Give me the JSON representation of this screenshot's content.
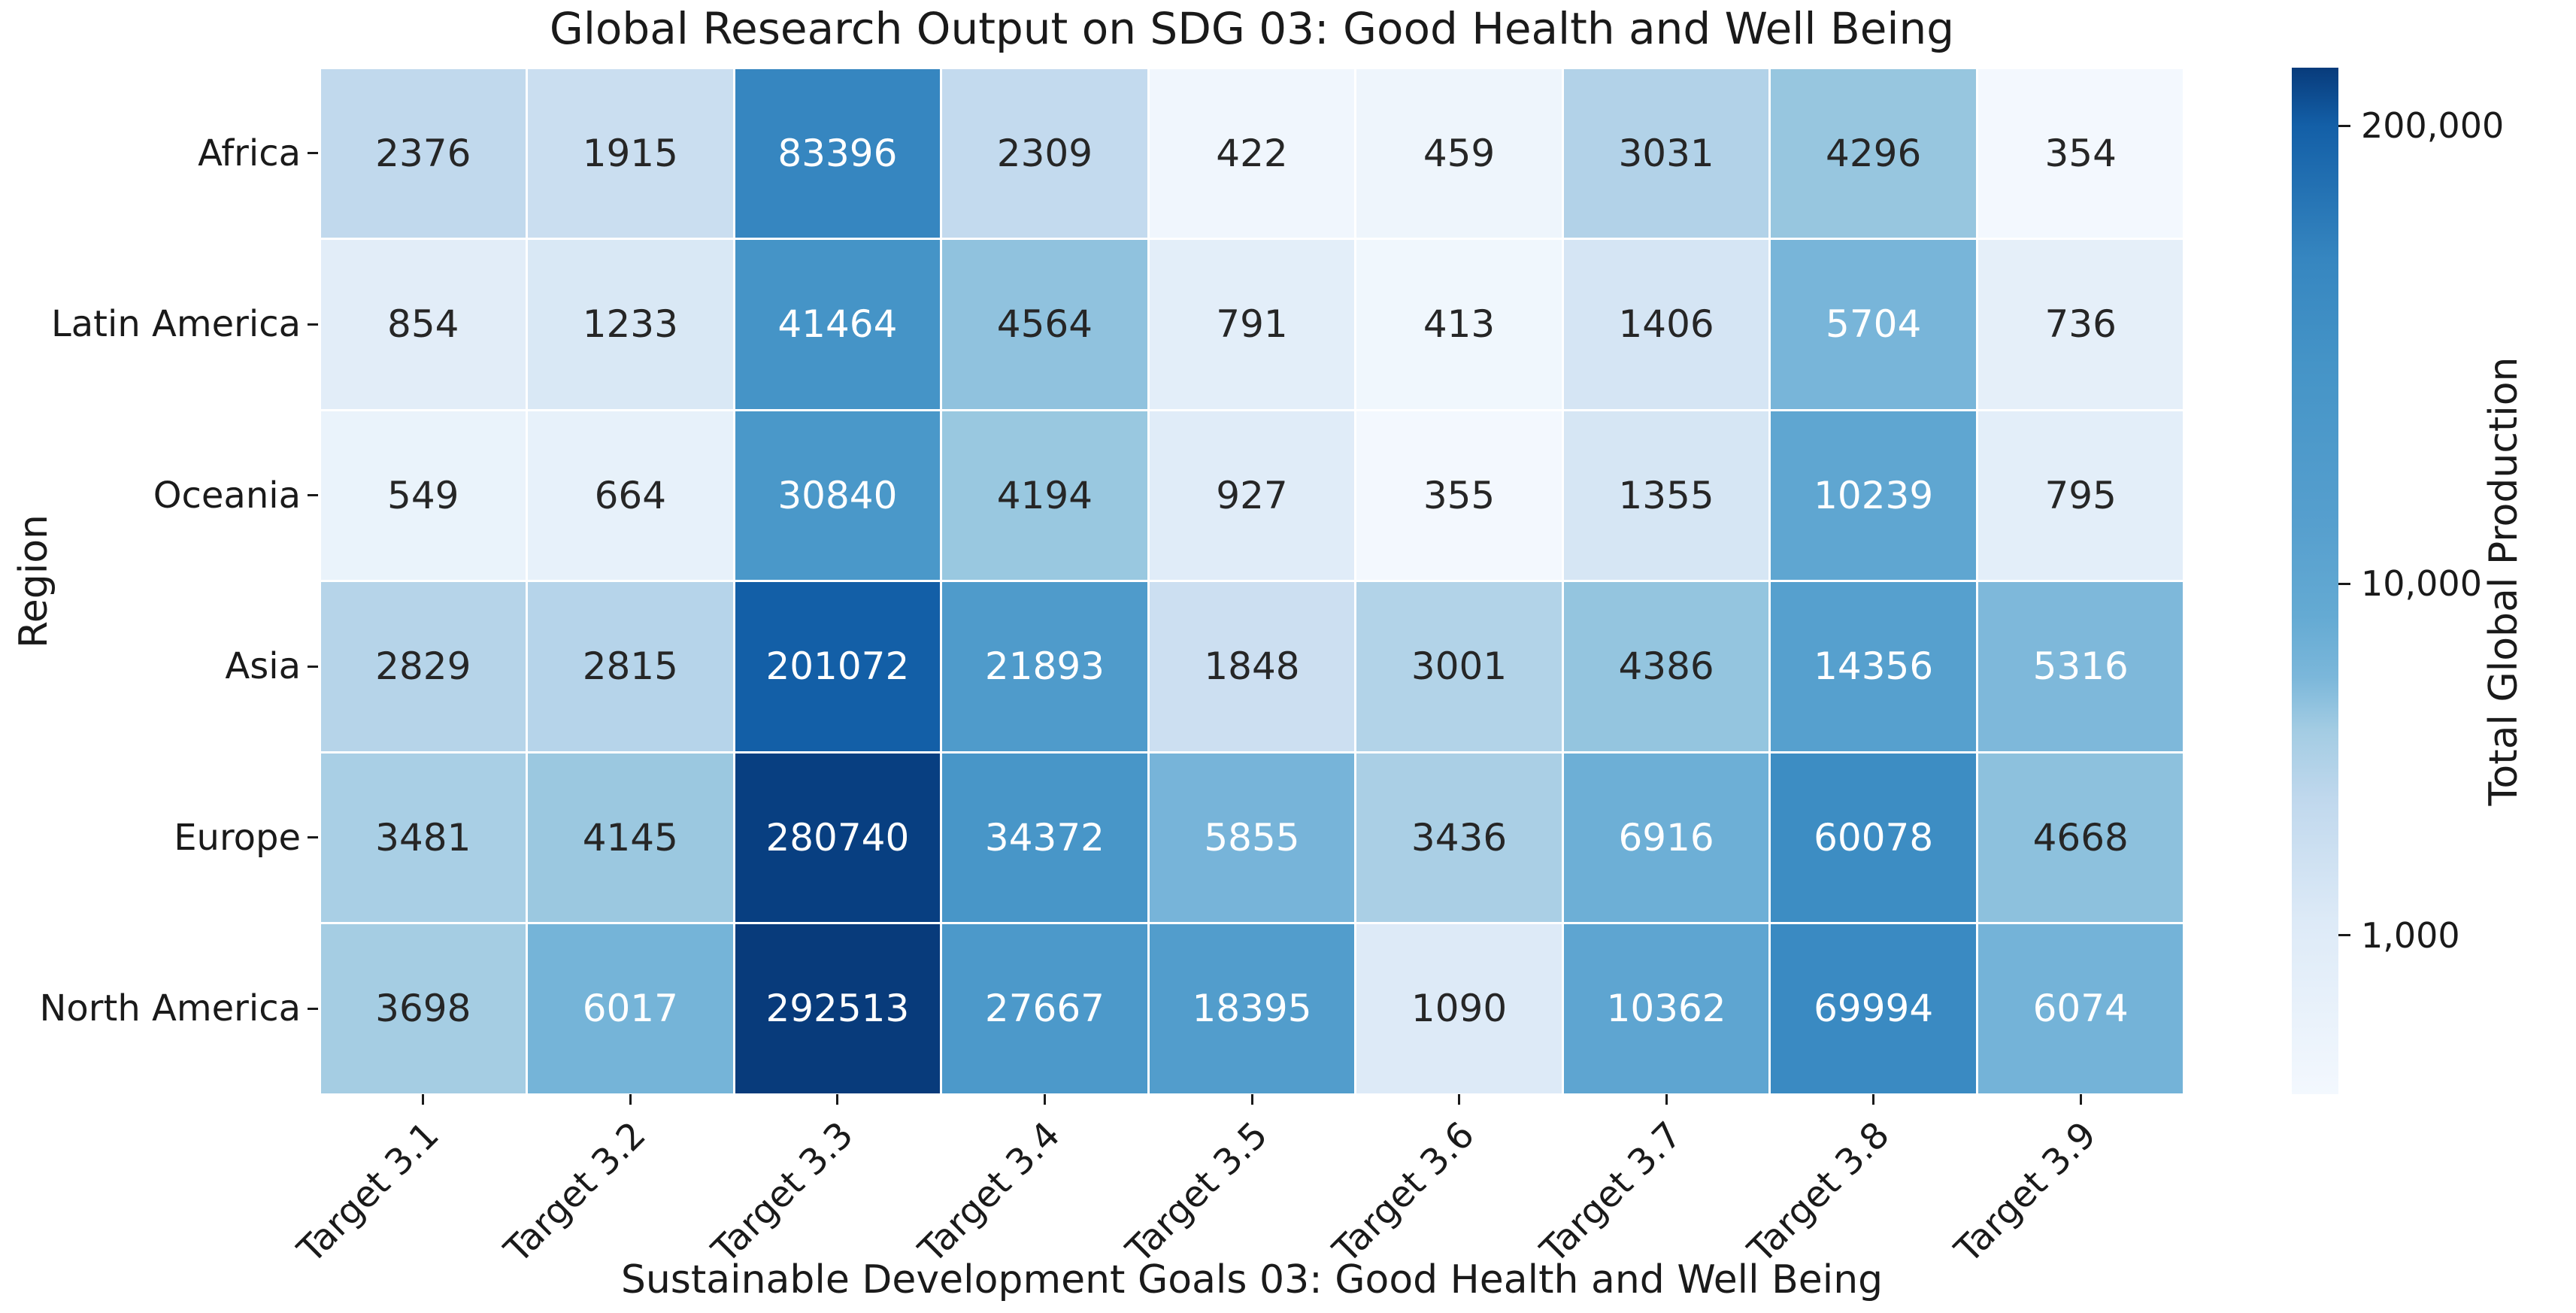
{
  "figure": {
    "title": "Global Research Output on SDG 03: Good Health and Well Being"
  },
  "axes": {
    "x_label": "Sustainable Development Goals 03: Good Health and Well Being",
    "y_label": "Region"
  },
  "colorbar": {
    "label": "Total Global Production",
    "ticks": [
      {
        "value": 200000,
        "label": "200,000"
      },
      {
        "value": 10000,
        "label": "10,000"
      },
      {
        "value": 1000,
        "label": "1,000"
      }
    ]
  },
  "chart_data": {
    "type": "heatmap",
    "title": "Global Research Output on SDG 03: Good Health and Well Being",
    "xlabel": "Sustainable Development Goals 03: Good Health and Well Being",
    "ylabel": "Region",
    "x_categories": [
      "Target 3.1",
      "Target 3.2",
      "Target 3.3",
      "Target 3.4",
      "Target 3.5",
      "Target 3.6",
      "Target 3.7",
      "Target 3.8",
      "Target 3.9"
    ],
    "y_categories": [
      "Africa",
      "Latin America",
      "Oceania",
      "Asia",
      "Europe",
      "North America"
    ],
    "values": [
      [
        2376,
        1915,
        83396,
        2309,
        422,
        459,
        3031,
        4296,
        354
      ],
      [
        854,
        1233,
        41464,
        4564,
        791,
        413,
        1406,
        5704,
        736
      ],
      [
        549,
        664,
        30840,
        4194,
        927,
        355,
        1355,
        10239,
        795
      ],
      [
        2829,
        2815,
        201072,
        21893,
        1848,
        3001,
        4386,
        14356,
        5316
      ],
      [
        3481,
        4145,
        280740,
        34372,
        5855,
        3436,
        6916,
        60078,
        4668
      ],
      [
        3698,
        6017,
        292513,
        27667,
        18395,
        1090,
        10362,
        69994,
        6074
      ]
    ],
    "color_scale": "log",
    "vmin": 354,
    "vmax": 292513,
    "colormap": "Blues",
    "colormap_stops": [
      "#f7fbff",
      "#deebf7",
      "#c6dbef",
      "#9ecae1",
      "#6baed6",
      "#4292c6",
      "#2171b5",
      "#08519c",
      "#08306b"
    ],
    "annotation_colors": {
      "dark": "#262626",
      "light": "#ffffff",
      "light_threshold": 5000
    },
    "background": "#ffffff",
    "grid": false,
    "legend_position": "right-colorbar"
  }
}
